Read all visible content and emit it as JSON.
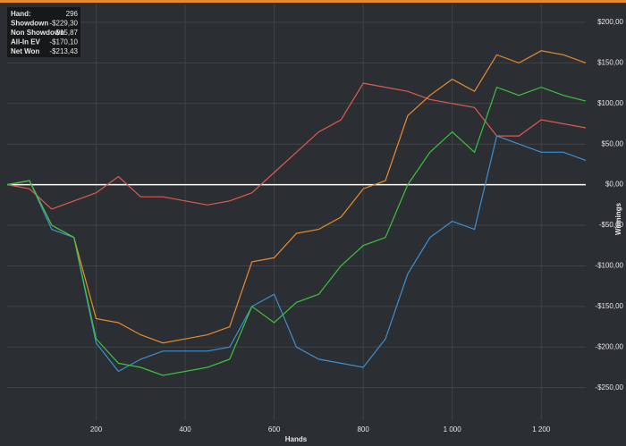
{
  "chart_data": {
    "type": "line",
    "x_label": "Hands",
    "y_label": "Winnings",
    "info": [
      {
        "label": "Hand:",
        "value": "296"
      },
      {
        "label": "Showdown",
        "value": "-$229,30"
      },
      {
        "label": "Non Showdown",
        "value": "$15,87"
      },
      {
        "label": "All-In EV",
        "value": "-$170,10"
      },
      {
        "label": "Net Won",
        "value": "-$213,43"
      }
    ],
    "x": [
      0,
      50,
      100,
      150,
      200,
      250,
      300,
      350,
      400,
      450,
      500,
      550,
      600,
      650,
      700,
      750,
      800,
      850,
      900,
      950,
      1000,
      1050,
      1100,
      1150,
      1200,
      1250,
      1300
    ],
    "series": [
      {
        "color": "#e0594f",
        "values": [
          0,
          -5,
          -30,
          -20,
          -10,
          10,
          -15,
          -15,
          -20,
          -25,
          -20,
          -10,
          15,
          40,
          65,
          80,
          125,
          120,
          115,
          105,
          100,
          95,
          60,
          60,
          80,
          75,
          70
        ]
      },
      {
        "color": "#3d8fd1",
        "values": [
          0,
          5,
          -55,
          -65,
          -195,
          -230,
          -215,
          -205,
          -205,
          -205,
          -200,
          -150,
          -135,
          -200,
          -215,
          -220,
          -225,
          -190,
          -110,
          -65,
          -45,
          -55,
          60,
          50,
          40,
          40,
          30
        ]
      },
      {
        "color": "#e88a2e",
        "values": [
          0,
          5,
          -50,
          -65,
          -165,
          -170,
          -185,
          -195,
          -190,
          -185,
          -175,
          -95,
          -90,
          -60,
          -55,
          -40,
          -5,
          5,
          85,
          110,
          130,
          115,
          160,
          150,
          165,
          160,
          150
        ]
      },
      {
        "color": "#3cc23c",
        "values": [
          0,
          5,
          -50,
          -65,
          -190,
          -220,
          -225,
          -235,
          -230,
          -225,
          -215,
          -150,
          -170,
          -145,
          -135,
          -100,
          -75,
          -65,
          0,
          40,
          65,
          40,
          120,
          110,
          120,
          110,
          103
        ]
      }
    ],
    "xlim": [
      0,
      1300
    ],
    "ylim": [
      -290,
      222
    ],
    "xticks": [
      200,
      400,
      600,
      800,
      {
        "value": 1000,
        "label": "1 000"
      },
      {
        "value": 1200,
        "label": "1 200"
      }
    ],
    "yticks": [
      {
        "value": 200,
        "label": "$200,00"
      },
      {
        "value": 150,
        "label": "$150,00"
      },
      {
        "value": 100,
        "label": "$100,00"
      },
      {
        "value": 50,
        "label": "$50,00"
      },
      {
        "value": 0,
        "label": "$0,00"
      },
      {
        "value": -50,
        "label": "-$50,00"
      },
      {
        "value": -100,
        "label": "-$100,00"
      },
      {
        "value": -150,
        "label": "-$150,00"
      },
      {
        "value": -200,
        "label": "-$200,00"
      },
      {
        "value": -250,
        "label": "-$250,00"
      }
    ],
    "grid": true
  }
}
